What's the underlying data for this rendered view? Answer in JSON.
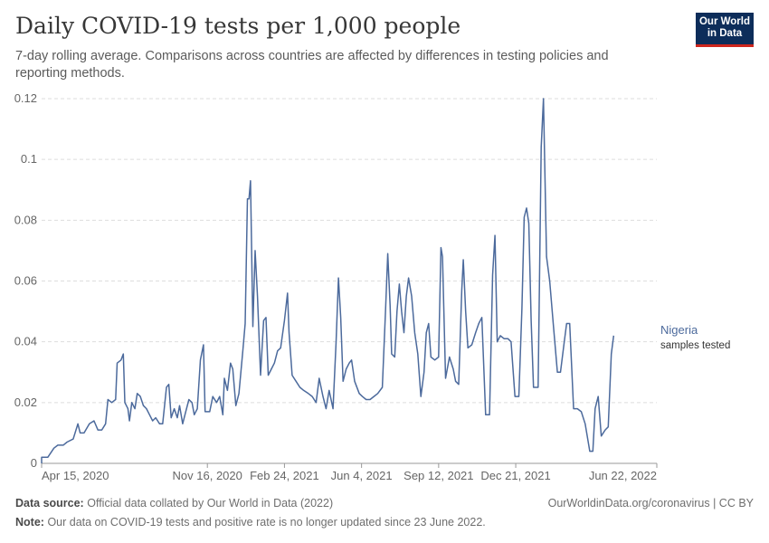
{
  "header": {
    "title": "Daily COVID-19 tests per 1,000 people",
    "subtitle": "7-day rolling average. Comparisons across countries are affected by differences in testing policies and reporting methods.",
    "logo_line1": "Our World",
    "logo_line2": "in Data"
  },
  "footer": {
    "source_label": "Data source:",
    "source_text": "Official data collated by Our World in Data (2022)",
    "note_label": "Note:",
    "note_text": "Our data on COVID-19 tests and positive rate is no longer updated since 23 June 2022.",
    "site": "OurWorldinData.org/coronavirus | CC BY"
  },
  "colors": {
    "series": "#4c6a9c",
    "grid": "#dddddd",
    "text": "#5b5b5b"
  },
  "chart_data": {
    "type": "line",
    "title": "Daily COVID-19 tests per 1,000 people",
    "subtitle": "7-day rolling average. Comparisons across countries are affected by differences in testing policies and reporting methods.",
    "xlabel": "",
    "ylabel": "",
    "ylim": [
      0,
      0.12
    ],
    "yticks": [
      "0",
      "0.02",
      "0.04",
      "0.06",
      "0.08",
      "0.1",
      "0.12"
    ],
    "yticks_values": [
      0,
      0.02,
      0.04,
      0.06,
      0.08,
      0.1,
      0.12
    ],
    "xlim": [
      "2020-04-15",
      "2022-06-22"
    ],
    "xticks": [
      {
        "date": "2020-04-15",
        "label": "Apr 15, 2020"
      },
      {
        "date": "2020-11-16",
        "label": "Nov 16, 2020"
      },
      {
        "date": "2021-02-24",
        "label": "Feb 24, 2021"
      },
      {
        "date": "2021-06-04",
        "label": "Jun 4, 2021"
      },
      {
        "date": "2021-09-12",
        "label": "Sep 12, 2021"
      },
      {
        "date": "2021-12-21",
        "label": "Dec 21, 2021"
      },
      {
        "date": "2022-06-22",
        "label": "Jun 22, 2022"
      }
    ],
    "grid": "horizontal-dashed",
    "legend": "end-of-line label",
    "series": [
      {
        "name": "Nigeria",
        "sublabel": "samples tested",
        "points": [
          [
            "2020-04-08",
            0.0
          ],
          [
            "2020-04-13",
            0.002
          ],
          [
            "2020-04-23",
            0.002
          ],
          [
            "2020-05-01",
            0.005
          ],
          [
            "2020-05-06",
            0.006
          ],
          [
            "2020-05-13",
            0.006
          ],
          [
            "2020-05-18",
            0.007
          ],
          [
            "2020-05-26",
            0.008
          ],
          [
            "2020-06-01",
            0.013
          ],
          [
            "2020-06-04",
            0.01
          ],
          [
            "2020-06-09",
            0.01
          ],
          [
            "2020-06-16",
            0.013
          ],
          [
            "2020-06-22",
            0.014
          ],
          [
            "2020-06-27",
            0.011
          ],
          [
            "2020-07-02",
            0.011
          ],
          [
            "2020-07-07",
            0.013
          ],
          [
            "2020-07-10",
            0.021
          ],
          [
            "2020-07-15",
            0.02
          ],
          [
            "2020-07-20",
            0.021
          ],
          [
            "2020-07-22",
            0.033
          ],
          [
            "2020-07-27",
            0.034
          ],
          [
            "2020-07-30",
            0.036
          ],
          [
            "2020-08-01",
            0.02
          ],
          [
            "2020-08-05",
            0.018
          ],
          [
            "2020-08-07",
            0.014
          ],
          [
            "2020-08-10",
            0.02
          ],
          [
            "2020-08-14",
            0.018
          ],
          [
            "2020-08-17",
            0.023
          ],
          [
            "2020-08-21",
            0.022
          ],
          [
            "2020-08-25",
            0.019
          ],
          [
            "2020-08-29",
            0.018
          ],
          [
            "2020-09-02",
            0.016
          ],
          [
            "2020-09-06",
            0.014
          ],
          [
            "2020-09-10",
            0.015
          ],
          [
            "2020-09-15",
            0.013
          ],
          [
            "2020-09-19",
            0.013
          ],
          [
            "2020-09-24",
            0.025
          ],
          [
            "2020-09-27",
            0.026
          ],
          [
            "2020-09-30",
            0.015
          ],
          [
            "2020-10-04",
            0.018
          ],
          [
            "2020-10-08",
            0.015
          ],
          [
            "2020-10-11",
            0.019
          ],
          [
            "2020-10-15",
            0.013
          ],
          [
            "2020-10-19",
            0.017
          ],
          [
            "2020-10-23",
            0.021
          ],
          [
            "2020-10-27",
            0.02
          ],
          [
            "2020-10-30",
            0.016
          ],
          [
            "2020-11-03",
            0.018
          ],
          [
            "2020-11-07",
            0.034
          ],
          [
            "2020-11-11",
            0.039
          ],
          [
            "2020-11-13",
            0.017
          ],
          [
            "2020-11-19",
            0.017
          ],
          [
            "2020-11-23",
            0.022
          ],
          [
            "2020-11-28",
            0.02
          ],
          [
            "2020-12-02",
            0.022
          ],
          [
            "2020-12-06",
            0.016
          ],
          [
            "2020-12-08",
            0.028
          ],
          [
            "2020-12-12",
            0.024
          ],
          [
            "2020-12-16",
            0.033
          ],
          [
            "2020-12-19",
            0.031
          ],
          [
            "2020-12-23",
            0.019
          ],
          [
            "2020-12-27",
            0.023
          ],
          [
            "2021-01-01",
            0.037
          ],
          [
            "2021-01-04",
            0.046
          ],
          [
            "2021-01-07",
            0.087
          ],
          [
            "2021-01-09",
            0.087
          ],
          [
            "2021-01-11",
            0.093
          ],
          [
            "2021-01-14",
            0.045
          ],
          [
            "2021-01-17",
            0.07
          ],
          [
            "2021-01-20",
            0.055
          ],
          [
            "2021-01-24",
            0.029
          ],
          [
            "2021-01-28",
            0.047
          ],
          [
            "2021-01-31",
            0.048
          ],
          [
            "2021-02-03",
            0.029
          ],
          [
            "2021-02-07",
            0.031
          ],
          [
            "2021-02-11",
            0.033
          ],
          [
            "2021-02-15",
            0.037
          ],
          [
            "2021-02-19",
            0.038
          ],
          [
            "2021-02-24",
            0.047
          ],
          [
            "2021-02-28",
            0.056
          ],
          [
            "2021-03-02",
            0.043
          ],
          [
            "2021-03-06",
            0.029
          ],
          [
            "2021-03-11",
            0.027
          ],
          [
            "2021-03-16",
            0.025
          ],
          [
            "2021-03-21",
            0.024
          ],
          [
            "2021-03-27",
            0.023
          ],
          [
            "2021-04-01",
            0.022
          ],
          [
            "2021-04-06",
            0.02
          ],
          [
            "2021-04-10",
            0.028
          ],
          [
            "2021-04-15",
            0.022
          ],
          [
            "2021-04-19",
            0.018
          ],
          [
            "2021-04-23",
            0.024
          ],
          [
            "2021-04-28",
            0.018
          ],
          [
            "2021-05-02",
            0.04
          ],
          [
            "2021-05-05",
            0.061
          ],
          [
            "2021-05-08",
            0.048
          ],
          [
            "2021-05-11",
            0.027
          ],
          [
            "2021-05-15",
            0.031
          ],
          [
            "2021-05-19",
            0.033
          ],
          [
            "2021-05-22",
            0.034
          ],
          [
            "2021-05-26",
            0.027
          ],
          [
            "2021-06-01",
            0.023
          ],
          [
            "2021-06-05",
            0.022
          ],
          [
            "2021-06-10",
            0.021
          ],
          [
            "2021-06-15",
            0.021
          ],
          [
            "2021-06-20",
            0.022
          ],
          [
            "2021-06-25",
            0.023
          ],
          [
            "2021-07-01",
            0.025
          ],
          [
            "2021-07-05",
            0.05
          ],
          [
            "2021-07-08",
            0.069
          ],
          [
            "2021-07-11",
            0.052
          ],
          [
            "2021-07-13",
            0.036
          ],
          [
            "2021-07-17",
            0.035
          ],
          [
            "2021-07-20",
            0.05
          ],
          [
            "2021-07-23",
            0.059
          ],
          [
            "2021-07-26",
            0.05
          ],
          [
            "2021-07-29",
            0.043
          ],
          [
            "2021-08-01",
            0.055
          ],
          [
            "2021-08-04",
            0.061
          ],
          [
            "2021-08-08",
            0.055
          ],
          [
            "2021-08-12",
            0.043
          ],
          [
            "2021-08-16",
            0.036
          ],
          [
            "2021-08-20",
            0.022
          ],
          [
            "2021-08-24",
            0.03
          ],
          [
            "2021-08-27",
            0.043
          ],
          [
            "2021-08-30",
            0.046
          ],
          [
            "2021-09-02",
            0.035
          ],
          [
            "2021-09-07",
            0.034
          ],
          [
            "2021-09-12",
            0.035
          ],
          [
            "2021-09-15",
            0.071
          ],
          [
            "2021-09-17",
            0.068
          ],
          [
            "2021-09-21",
            0.028
          ],
          [
            "2021-09-26",
            0.035
          ],
          [
            "2021-10-01",
            0.031
          ],
          [
            "2021-10-04",
            0.027
          ],
          [
            "2021-10-08",
            0.026
          ],
          [
            "2021-10-12",
            0.057
          ],
          [
            "2021-10-14",
            0.067
          ],
          [
            "2021-10-17",
            0.05
          ],
          [
            "2021-10-20",
            0.038
          ],
          [
            "2021-10-25",
            0.039
          ],
          [
            "2021-10-30",
            0.043
          ],
          [
            "2021-11-03",
            0.046
          ],
          [
            "2021-11-07",
            0.048
          ],
          [
            "2021-11-12",
            0.016
          ],
          [
            "2021-11-17",
            0.016
          ],
          [
            "2021-11-21",
            0.062
          ],
          [
            "2021-11-24",
            0.075
          ],
          [
            "2021-11-27",
            0.04
          ],
          [
            "2021-12-01",
            0.042
          ],
          [
            "2021-12-06",
            0.041
          ],
          [
            "2021-12-11",
            0.041
          ],
          [
            "2021-12-15",
            0.04
          ],
          [
            "2021-12-20",
            0.022
          ],
          [
            "2021-12-25",
            0.022
          ],
          [
            "2021-12-29",
            0.051
          ],
          [
            "2022-01-01",
            0.081
          ],
          [
            "2022-01-04",
            0.084
          ],
          [
            "2022-01-07",
            0.079
          ],
          [
            "2022-01-10",
            0.047
          ],
          [
            "2022-01-13",
            0.025
          ],
          [
            "2022-01-19",
            0.025
          ],
          [
            "2022-01-23",
            0.104
          ],
          [
            "2022-01-26",
            0.12
          ],
          [
            "2022-01-30",
            0.068
          ],
          [
            "2022-02-03",
            0.06
          ],
          [
            "2022-02-08",
            0.045
          ],
          [
            "2022-02-13",
            0.03
          ],
          [
            "2022-02-17",
            0.03
          ],
          [
            "2022-02-22",
            0.04
          ],
          [
            "2022-02-25",
            0.046
          ],
          [
            "2022-03-01",
            0.046
          ],
          [
            "2022-03-06",
            0.018
          ],
          [
            "2022-03-11",
            0.018
          ],
          [
            "2022-03-16",
            0.017
          ],
          [
            "2022-03-21",
            0.013
          ],
          [
            "2022-03-27",
            0.004
          ],
          [
            "2022-03-31",
            0.004
          ],
          [
            "2022-04-03",
            0.018
          ],
          [
            "2022-04-07",
            0.022
          ],
          [
            "2022-04-11",
            0.009
          ],
          [
            "2022-04-16",
            0.011
          ],
          [
            "2022-04-20",
            0.012
          ],
          [
            "2022-04-24",
            0.036
          ],
          [
            "2022-04-27",
            0.042
          ]
        ]
      }
    ]
  }
}
